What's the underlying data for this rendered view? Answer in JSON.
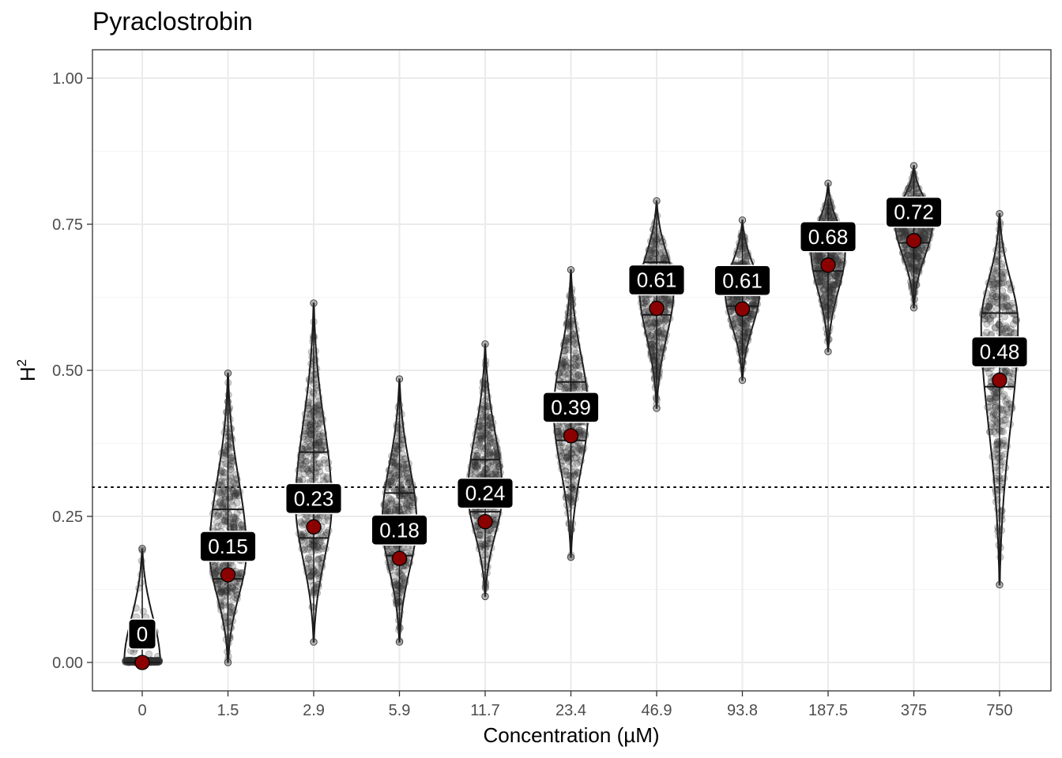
{
  "chart_data": {
    "type": "violin",
    "title": "Pyraclostrobin",
    "xlabel": "Concentration (µM)",
    "ylabel": "H",
    "ylabel_superscript": "2",
    "ylim": [
      -0.05,
      1.05
    ],
    "yticks": [
      0.0,
      0.25,
      0.5,
      0.75,
      1.0
    ],
    "ytick_labels": [
      "0.00",
      "0.25",
      "0.50",
      "0.75",
      "1.00"
    ],
    "reference_line": 0.3,
    "categories": [
      "0",
      "1.5",
      "2.9",
      "5.9",
      "11.7",
      "23.4",
      "46.9",
      "93.8",
      "187.5",
      "375",
      "750"
    ],
    "series": [
      {
        "name": "0",
        "mean": 0.0,
        "label": "0",
        "min": 0.0,
        "max": 0.195,
        "q1": 0.0,
        "median": 0.0,
        "q3": 0.0,
        "mode": 0.0,
        "halfwidth": 0.42
      },
      {
        "name": "1.5",
        "mean": 0.15,
        "label": "0.15",
        "min": 0.0,
        "max": 0.495,
        "q1": 0.143,
        "median": 0.2,
        "q3": 0.262,
        "mode": 0.19,
        "halfwidth": 0.43
      },
      {
        "name": "2.9",
        "mean": 0.232,
        "label": "0.23",
        "min": 0.035,
        "max": 0.615,
        "q1": 0.213,
        "median": 0.282,
        "q3": 0.36,
        "mode": 0.27,
        "halfwidth": 0.42
      },
      {
        "name": "5.9",
        "mean": 0.178,
        "label": "0.18",
        "min": 0.035,
        "max": 0.485,
        "q1": 0.183,
        "median": 0.24,
        "q3": 0.29,
        "mode": 0.24,
        "halfwidth": 0.4
      },
      {
        "name": "11.7",
        "mean": 0.241,
        "label": "0.24",
        "min": 0.113,
        "max": 0.545,
        "q1": 0.258,
        "median": 0.3,
        "q3": 0.347,
        "mode": 0.29,
        "halfwidth": 0.4
      },
      {
        "name": "23.4",
        "mean": 0.388,
        "label": "0.39",
        "min": 0.18,
        "max": 0.672,
        "q1": 0.38,
        "median": 0.435,
        "q3": 0.48,
        "mode": 0.43,
        "halfwidth": 0.4
      },
      {
        "name": "46.9",
        "mean": 0.606,
        "label": "0.61",
        "min": 0.435,
        "max": 0.79,
        "q1": 0.595,
        "median": 0.64,
        "q3": 0.685,
        "mode": 0.64,
        "halfwidth": 0.4
      },
      {
        "name": "93.8",
        "mean": 0.605,
        "label": "0.61",
        "min": 0.483,
        "max": 0.757,
        "q1": 0.61,
        "median": 0.635,
        "q3": 0.665,
        "mode": 0.635,
        "halfwidth": 0.4
      },
      {
        "name": "187.5",
        "mean": 0.68,
        "label": "0.68",
        "min": 0.532,
        "max": 0.82,
        "q1": 0.67,
        "median": 0.705,
        "q3": 0.738,
        "mode": 0.705,
        "halfwidth": 0.4
      },
      {
        "name": "375",
        "mean": 0.722,
        "label": "0.72",
        "min": 0.607,
        "max": 0.85,
        "q1": 0.718,
        "median": 0.75,
        "q3": 0.77,
        "mode": 0.755,
        "halfwidth": 0.44
      },
      {
        "name": "750",
        "mean": 0.483,
        "label": "0.48",
        "min": 0.133,
        "max": 0.768,
        "q1": 0.472,
        "median": 0.54,
        "q3": 0.598,
        "mode": 0.58,
        "halfwidth": 0.43
      }
    ],
    "colors": {
      "mean_point": "#8b0000",
      "label_bg": "#000000",
      "label_text": "#ffffff",
      "panel_border": "#333333",
      "grid": "#ebebeb",
      "violin_outline": "#1a1a1a",
      "jitter": "#333333"
    }
  }
}
